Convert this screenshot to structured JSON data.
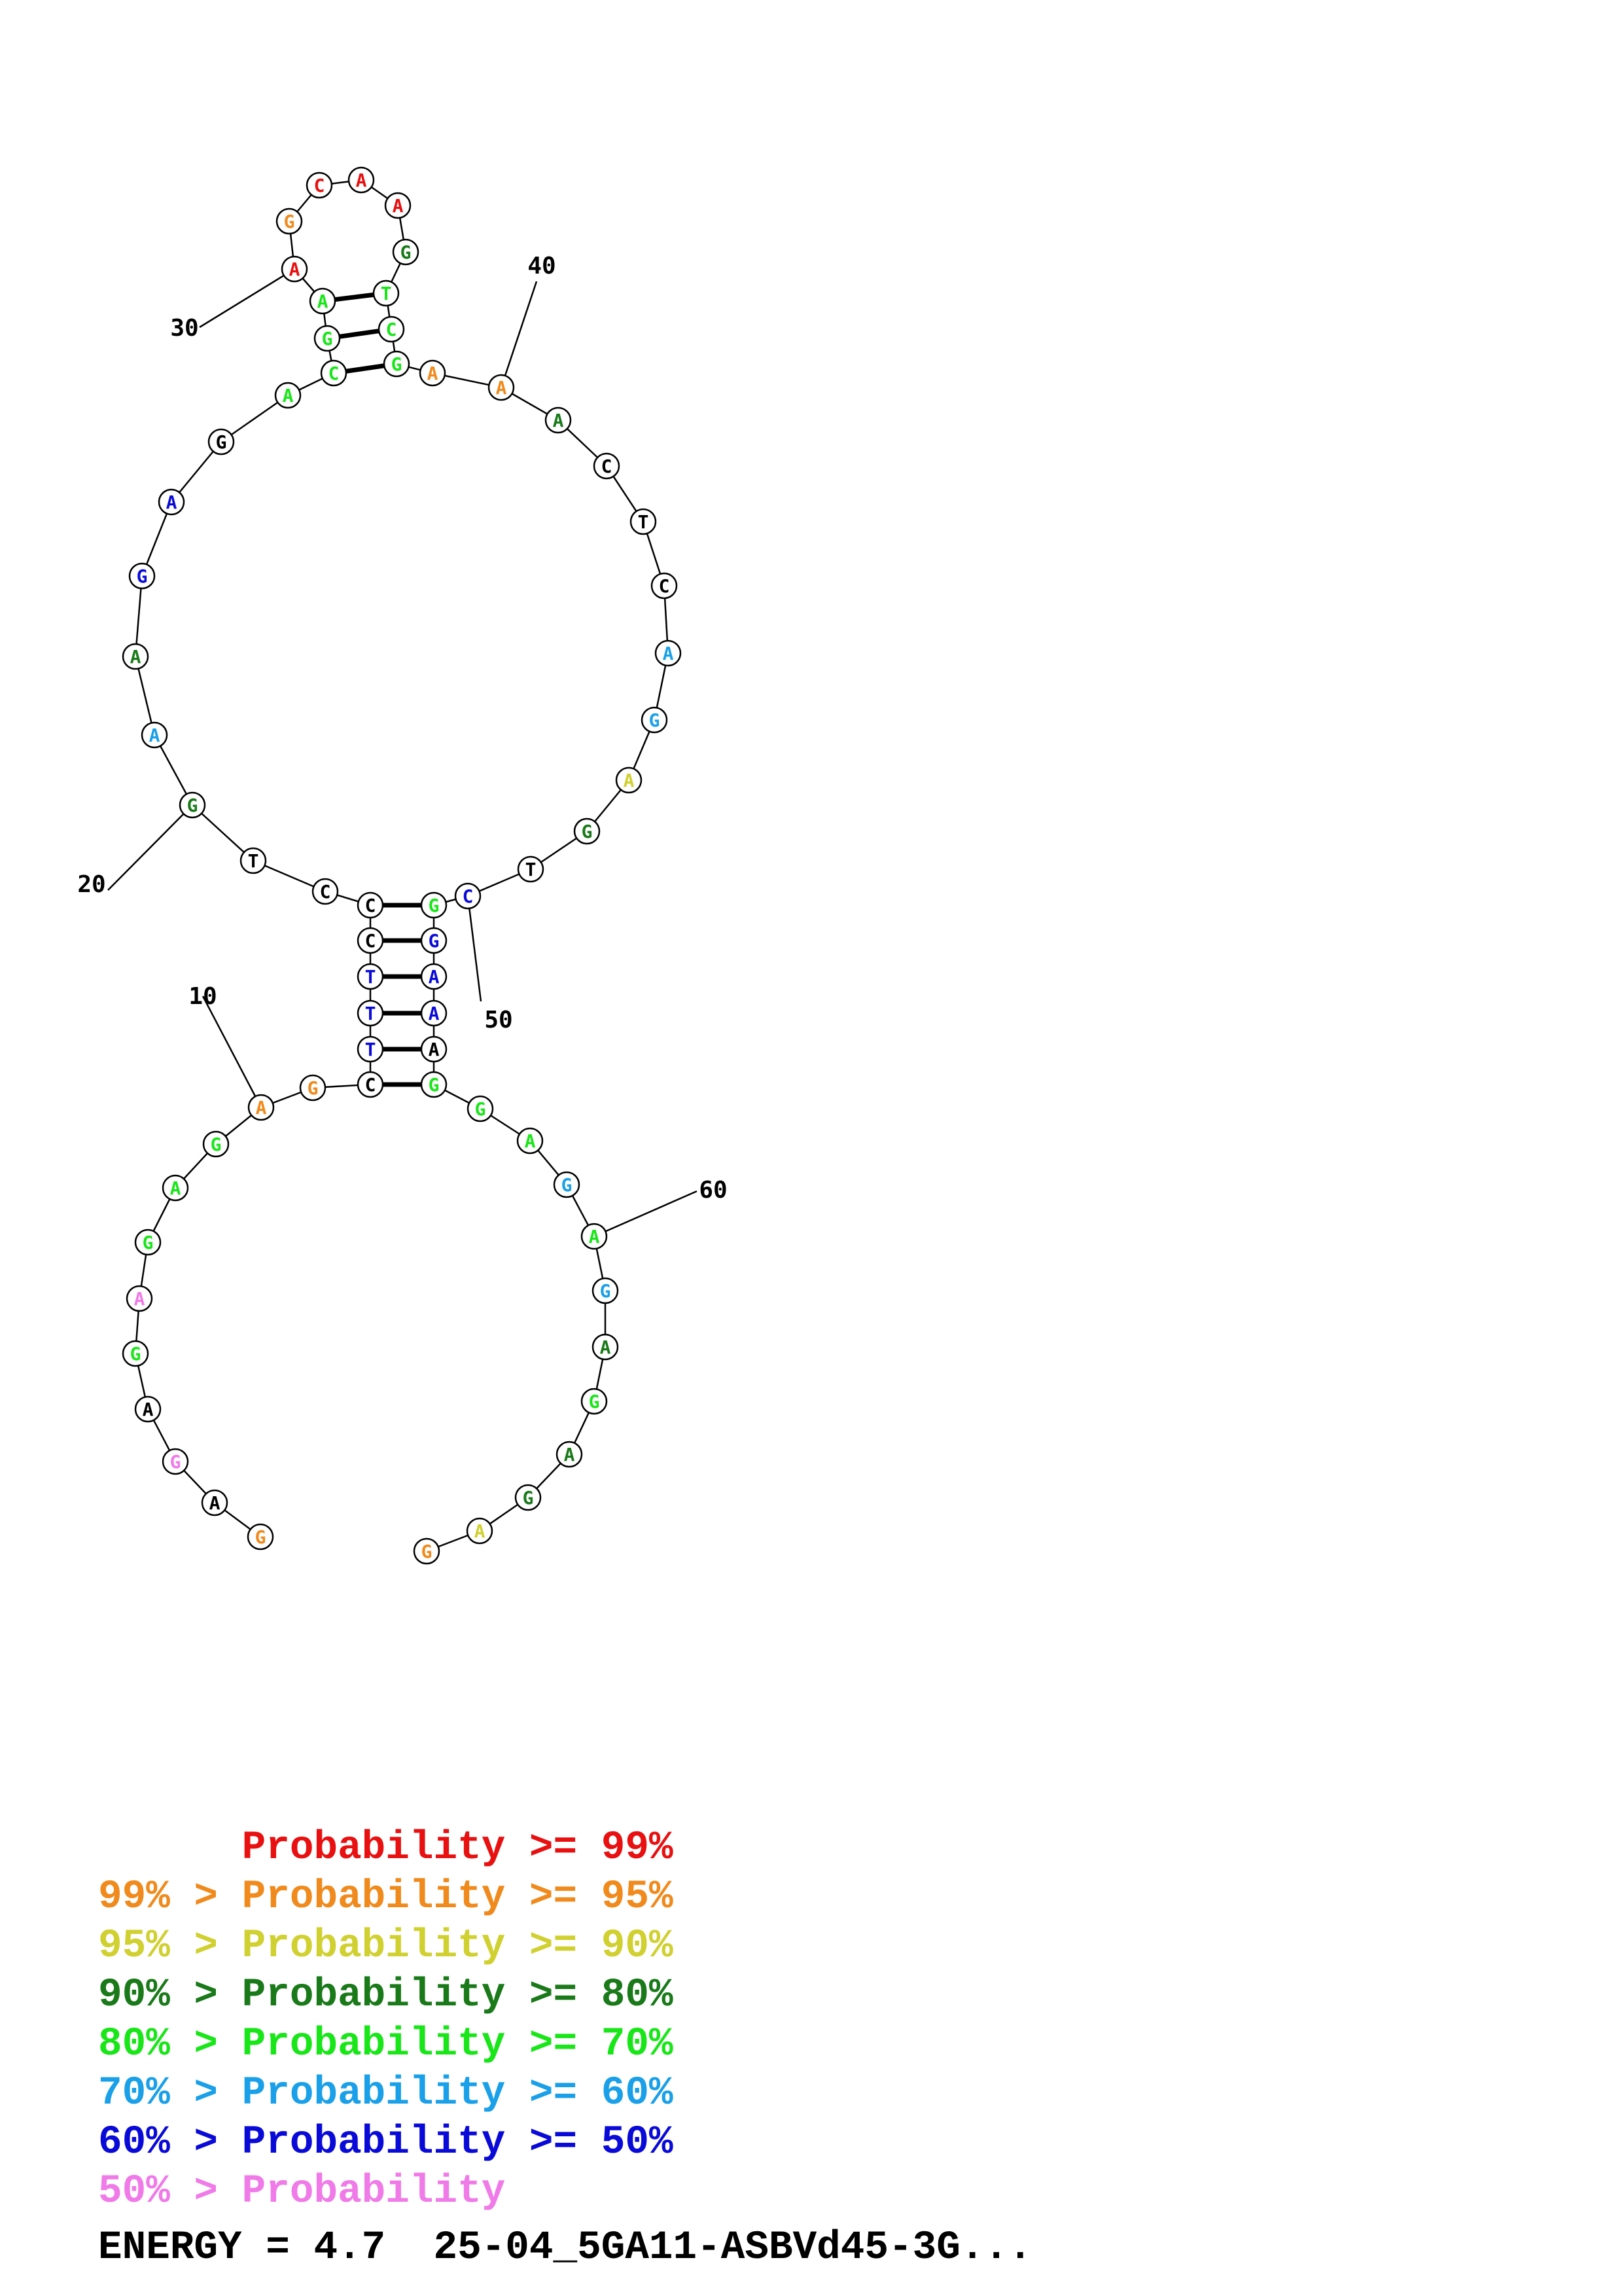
{
  "diagram": {
    "sequence": [
      "G",
      "A",
      "G",
      "A",
      "G",
      "A",
      "G",
      "A",
      "G",
      "A",
      "G",
      "C",
      "T",
      "T",
      "T",
      "C",
      "C",
      "C",
      "T",
      "G",
      "A",
      "A",
      "G",
      "A",
      "G",
      "A",
      "C",
      "G",
      "A",
      "A",
      "G",
      "C",
      "A",
      "A",
      "G",
      "T",
      "C",
      "G",
      "A",
      "A",
      "A",
      "C",
      "T",
      "C",
      "A",
      "G",
      "A",
      "G",
      "T",
      "C",
      "G",
      "G",
      "A",
      "A",
      "A",
      "G",
      "G",
      "A",
      "G",
      "A",
      "G",
      "A",
      "G",
      "A",
      "G",
      "A",
      "G"
    ],
    "probability_class": [
      1,
      8,
      7,
      8,
      4,
      7,
      4,
      4,
      4,
      1,
      1,
      8,
      6,
      6,
      6,
      8,
      8,
      8,
      8,
      3,
      5,
      3,
      6,
      6,
      8,
      4,
      4,
      4,
      4,
      0,
      1,
      0,
      0,
      0,
      3,
      4,
      4,
      4,
      1,
      1,
      3,
      8,
      8,
      8,
      5,
      5,
      2,
      3,
      8,
      6,
      4,
      6,
      6,
      6,
      8,
      4,
      4,
      4,
      5,
      4,
      5,
      3,
      4,
      3,
      3,
      2,
      1
    ],
    "pairs": [
      [
        12,
        56
      ],
      [
        13,
        55
      ],
      [
        14,
        54
      ],
      [
        15,
        53
      ],
      [
        16,
        52
      ],
      [
        17,
        51
      ],
      [
        27,
        38
      ],
      [
        28,
        37
      ],
      [
        29,
        36
      ]
    ],
    "index_labels": [
      {
        "text": "10",
        "base": 10
      },
      {
        "text": "20",
        "base": 20
      },
      {
        "text": "30",
        "base": 30
      },
      {
        "text": "40",
        "base": 40
      },
      {
        "text": "50",
        "base": 50
      },
      {
        "text": "60",
        "base": 60
      }
    ],
    "colors": [
      "#e81010",
      "#f08a1c",
      "#d0d030",
      "#1a7a1a",
      "#19e619",
      "#1aa0e8",
      "#0a0ad8",
      "#f07ae8",
      "#000000"
    ]
  },
  "legend": [
    {
      "prefix": "",
      "label": "Probability",
      "suffix": " >= 99%",
      "color": "#e81010"
    },
    {
      "prefix": "99% > ",
      "label": "Probability",
      "suffix": " >= 95%",
      "color": "#f08a1c"
    },
    {
      "prefix": "95% > ",
      "label": "Probability",
      "suffix": " >= 90%",
      "color": "#d0d030"
    },
    {
      "prefix": "90% > ",
      "label": "Probability",
      "suffix": " >= 80%",
      "color": "#1a7a1a"
    },
    {
      "prefix": "80% > ",
      "label": "Probability",
      "suffix": " >= 70%",
      "color": "#19e619"
    },
    {
      "prefix": "70% > ",
      "label": "Probability",
      "suffix": " >= 60%",
      "color": "#1aa0e8"
    },
    {
      "prefix": "60% > ",
      "label": "Probability",
      "suffix": " >= 50%",
      "color": "#0a0ad8"
    },
    {
      "prefix": "50% > ",
      "label": "Probability",
      "suffix": "",
      "color": "#f07ae8"
    }
  ],
  "footer": {
    "energy_text": "ENERGY = 4.7  25-04_5GA11-ASBVd45-3G..."
  }
}
